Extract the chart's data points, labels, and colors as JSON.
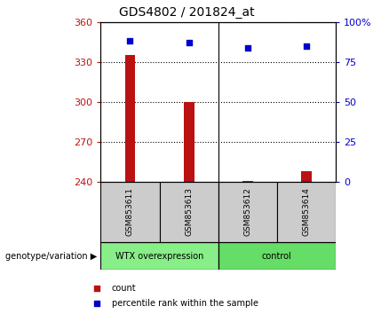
{
  "title": "GDS4802 / 201824_at",
  "samples": [
    "GSM853611",
    "GSM853613",
    "GSM853612",
    "GSM853614"
  ],
  "bar_values": [
    335,
    300,
    241,
    248
  ],
  "bar_baseline": 240,
  "percentile_values": [
    88,
    87,
    84,
    85
  ],
  "bar_color": "#bb1111",
  "percentile_color": "#0000cc",
  "ylim_left": [
    240,
    360
  ],
  "ylim_right": [
    0,
    100
  ],
  "yticks_left": [
    240,
    270,
    300,
    330,
    360
  ],
  "yticks_right": [
    0,
    25,
    50,
    75,
    100
  ],
  "ytick_labels_right": [
    "0",
    "25",
    "50",
    "75",
    "100%"
  ],
  "groups": [
    {
      "label": "WTX overexpression",
      "samples": [
        0,
        1
      ],
      "color": "#88ee88"
    },
    {
      "label": "control",
      "samples": [
        2,
        3
      ],
      "color": "#66dd66"
    }
  ],
  "group_label": "genotype/variation",
  "legend": [
    {
      "label": "count",
      "color": "#bb1111",
      "marker": "s"
    },
    {
      "label": "percentile rank within the sample",
      "color": "#0000cc",
      "marker": "s"
    }
  ],
  "grid_color": "#000000",
  "sample_box_color": "#cccccc",
  "bar_width": 0.18,
  "title_fontsize": 10
}
